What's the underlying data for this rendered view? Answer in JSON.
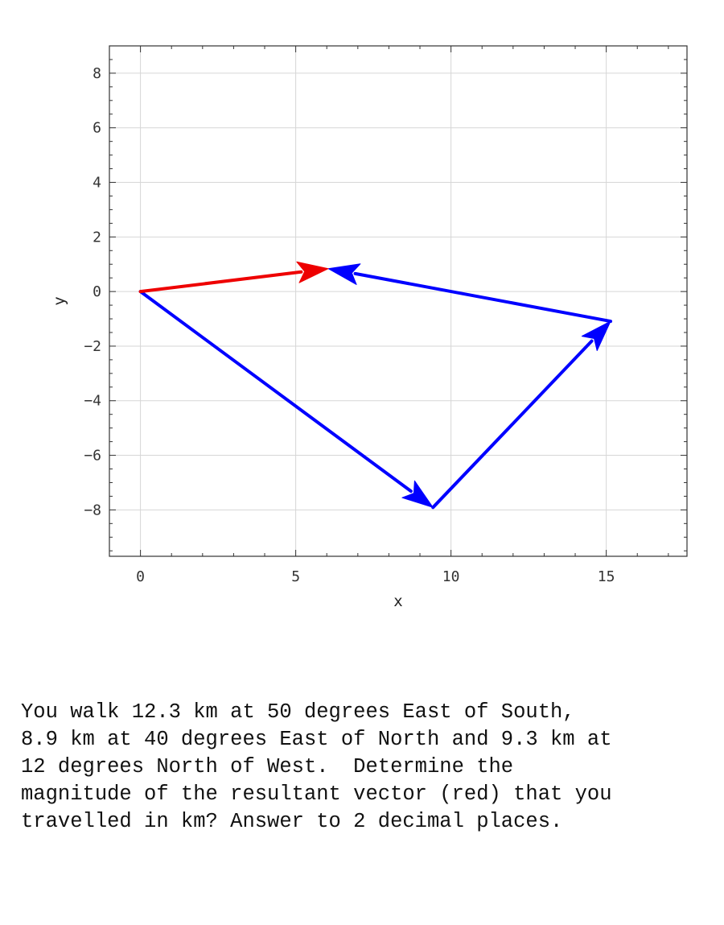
{
  "chart_data": {
    "type": "vector-diagram",
    "xlabel": "x",
    "ylabel": "y",
    "xlim": [
      -1,
      17.6
    ],
    "ylim": [
      -9.7,
      9
    ],
    "xticks": [
      0,
      5,
      10,
      15
    ],
    "yticks": [
      -8,
      -6,
      -4,
      -2,
      0,
      2,
      4,
      6,
      8
    ],
    "grid": true,
    "vectors": [
      {
        "name": "12.3 km at 50 degrees East of South",
        "from": [
          0,
          0
        ],
        "to": [
          9.42,
          -7.91
        ],
        "color": "#0000ff"
      },
      {
        "name": "8.9 km at 40 degrees East of North",
        "from": [
          9.42,
          -7.91
        ],
        "to": [
          15.14,
          -1.09
        ],
        "color": "#0000ff"
      },
      {
        "name": "9.3 km at 12 degrees North of West",
        "from": [
          15.14,
          -1.09
        ],
        "to": [
          6.05,
          0.84
        ],
        "color": "#0000ff"
      },
      {
        "name": "resultant",
        "from": [
          0,
          0
        ],
        "to": [
          6.05,
          0.84
        ],
        "color": "#ee0000"
      }
    ]
  },
  "question": {
    "lines": [
      "You walk 12.3 km at 50 degrees East of South,",
      "8.9 km at 40 degrees East of North and 9.3 km at",
      "12 degrees North of West.  Determine the",
      "magnitude of the resultant vector (red) that you",
      "travelled in km? Answer to 2 decimal places."
    ]
  }
}
